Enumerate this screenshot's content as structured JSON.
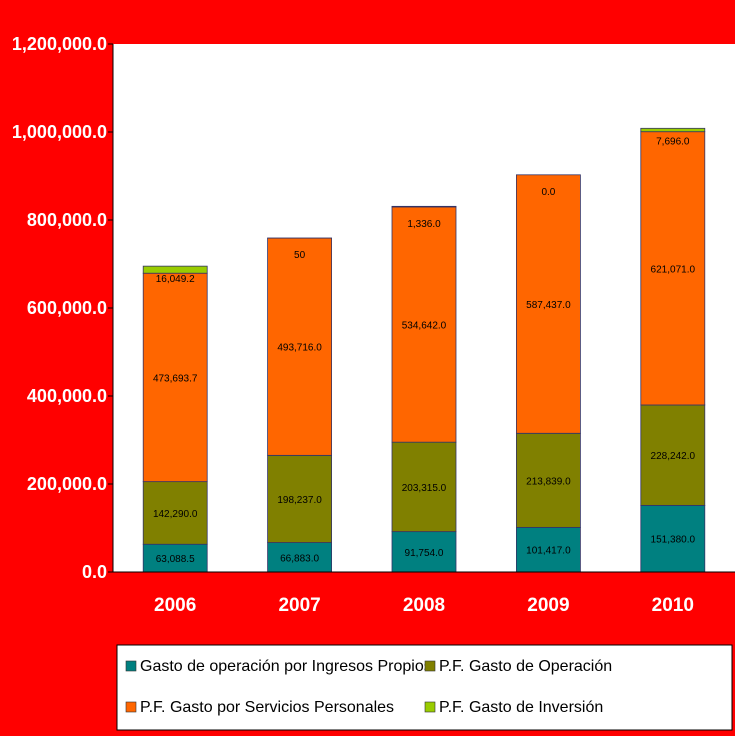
{
  "chart_data": {
    "type": "bar",
    "stacked": true,
    "title": "",
    "xlabel": "",
    "ylabel": "",
    "ylim": [
      0,
      1200000
    ],
    "yticks": [
      0,
      200000,
      400000,
      600000,
      800000,
      1000000,
      1200000
    ],
    "ytick_labels": [
      "0.0",
      "200,000.0",
      "400,000.0",
      "600,000.0",
      "800,000.0",
      "1,000,000.0",
      "1,200,000.0"
    ],
    "grid": false,
    "legend_position": "bottom",
    "categories": [
      "2006",
      "2007",
      "2008",
      "2009",
      "2010"
    ],
    "series": [
      {
        "name": "Gasto de operación por Ingresos Propios",
        "color": "#008080",
        "values": [
          63088.5,
          66883.0,
          91754.0,
          101417.0,
          151380.0
        ],
        "labels": [
          "63,088.5",
          "66,883.0",
          "91,754.0",
          "101,417.0",
          "151,380.0"
        ]
      },
      {
        "name": "P.F. Gasto de Operación",
        "color": "#808000",
        "values": [
          142290.0,
          198237.0,
          203315.0,
          213839.0,
          228242.0
        ],
        "labels": [
          "142,290.0",
          "198,237.0",
          "203,315.0",
          "213,839.0",
          "228,242.0"
        ]
      },
      {
        "name": "P.F. Gasto por Servicios Personales",
        "color": "#ff6600",
        "values": [
          473693.7,
          493716.0,
          534642.0,
          587437.0,
          621071.0
        ],
        "labels": [
          "473,693.7",
          "493,716.0",
          "534,642.0",
          "587,437.0",
          "621,071.0"
        ]
      },
      {
        "name": "P.F. Gasto de Inversión",
        "color": "#99cc00",
        "values": [
          16049.2,
          50,
          1336.0,
          0.0,
          7696.0
        ],
        "labels": [
          "16,049.2",
          "50",
          "1,336.0",
          "0.0",
          "7,696.0"
        ]
      }
    ]
  },
  "colors": {
    "background": "#ff0000",
    "plot_area": "#ffffff",
    "tick_text": "#ffffff"
  }
}
